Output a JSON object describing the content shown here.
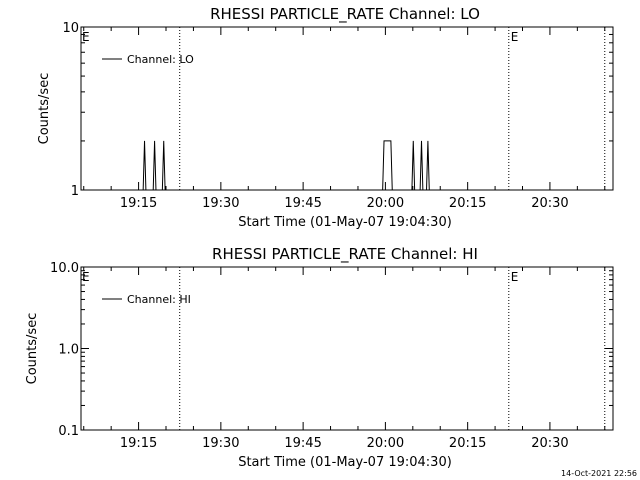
{
  "page_stamp": "14-Oct-2021 22:56",
  "chart_data": [
    {
      "type": "line",
      "title": "RHESSI PARTICLE_RATE Channel: LO",
      "xlabel": "Start Time (01-May-07 19:04:30)",
      "ylabel": "Counts/sec",
      "yscale": "log",
      "xlim": [
        "19:04:30",
        "20:41:30"
      ],
      "ylim": [
        1,
        10
      ],
      "x_ticks": [
        "19:15",
        "19:30",
        "19:45",
        "20:00",
        "20:15",
        "20:30"
      ],
      "y_ticks": [
        "1",
        "10"
      ],
      "legend": {
        "text": "Channel: LO",
        "placement": "top-left"
      },
      "event_lines": [
        {
          "time": "19:22:30",
          "label": ""
        },
        {
          "time": "20:22:30",
          "label": "E"
        },
        {
          "time": "20:40:00",
          "label": ""
        }
      ],
      "start_marker": "E",
      "series": [
        {
          "color": "#000000",
          "points": [
            [
              "19:04:30",
              1
            ],
            [
              "19:15:50",
              1
            ],
            [
              "19:16:05",
              2
            ],
            [
              "19:16:20",
              1
            ],
            [
              "19:17:40",
              1
            ],
            [
              "19:17:55",
              2
            ],
            [
              "19:18:10",
              1
            ],
            [
              "19:19:20",
              1
            ],
            [
              "19:19:35",
              2
            ],
            [
              "19:19:50",
              1
            ],
            [
              "19:59:30",
              1
            ],
            [
              "19:59:45",
              2
            ],
            [
              "20:01:00",
              2
            ],
            [
              "20:01:15",
              1
            ],
            [
              "20:04:50",
              1
            ],
            [
              "20:05:05",
              2
            ],
            [
              "20:05:20",
              1
            ],
            [
              "20:06:20",
              1
            ],
            [
              "20:06:35",
              2
            ],
            [
              "20:06:50",
              1
            ],
            [
              "20:07:30",
              1
            ],
            [
              "20:07:45",
              2
            ],
            [
              "20:08:00",
              1
            ],
            [
              "20:41:30",
              1
            ]
          ]
        }
      ]
    },
    {
      "type": "line",
      "title": "RHESSI PARTICLE_RATE Channel: HI",
      "xlabel": "Start Time (01-May-07 19:04:30)",
      "ylabel": "Counts/sec",
      "yscale": "log",
      "xlim": [
        "19:04:30",
        "20:41:30"
      ],
      "ylim": [
        0.1,
        10
      ],
      "x_ticks": [
        "19:15",
        "19:30",
        "19:45",
        "20:00",
        "20:15",
        "20:30"
      ],
      "y_ticks": [
        "0.1",
        "1.0",
        "10.0"
      ],
      "legend": {
        "text": "Channel: HI",
        "placement": "top-left"
      },
      "event_lines": [
        {
          "time": "19:22:30",
          "label": ""
        },
        {
          "time": "20:22:30",
          "label": "E"
        },
        {
          "time": "20:40:00",
          "label": ""
        }
      ],
      "start_marker": "E",
      "series": [
        {
          "color": "#000000",
          "points": []
        }
      ]
    }
  ]
}
